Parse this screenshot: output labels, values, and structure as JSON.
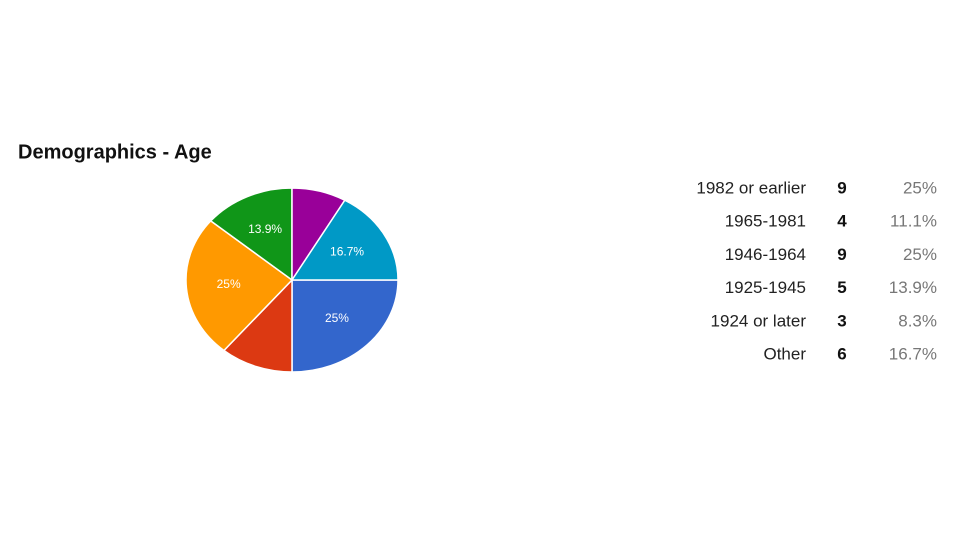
{
  "chart_data": {
    "type": "pie",
    "title": "Demographics - Age",
    "categories": [
      "1982 or earlier",
      "1965-1981",
      "1946-1964",
      "1925-1945",
      "1924 or later",
      "Other"
    ],
    "counts": [
      9,
      4,
      9,
      5,
      3,
      6
    ],
    "values": [
      25,
      11.1,
      25,
      13.9,
      8.3,
      16.7
    ],
    "value_labels": [
      "25%",
      "11.1%",
      "25%",
      "13.9%",
      "8.3%",
      "16.7%"
    ],
    "colors": [
      "#3366cc",
      "#dc3912",
      "#ff9900",
      "#109618",
      "#990099",
      "#0099c6"
    ]
  }
}
